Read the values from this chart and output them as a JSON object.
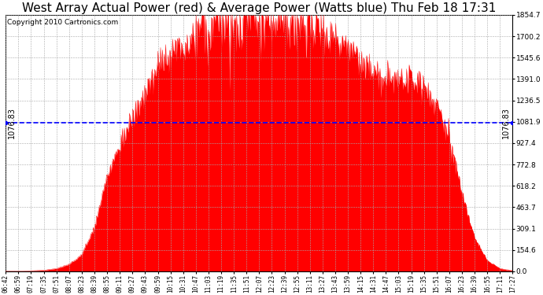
{
  "title": "West Array Actual Power (red) & Average Power (Watts blue) Thu Feb 18 17:31",
  "copyright": "Copyright 2010 Cartronics.com",
  "average_power": 1076.83,
  "ymax": 1854.7,
  "ymin": 0.0,
  "yticks": [
    0.0,
    154.6,
    309.1,
    463.7,
    618.2,
    772.8,
    927.4,
    1081.9,
    1236.5,
    1391.0,
    1545.6,
    1700.2,
    1854.7
  ],
  "fill_color": "#ff0000",
  "line_color": "#0000ff",
  "bg_color": "#ffffff",
  "grid_color": "#aaaaaa",
  "title_fontsize": 11,
  "copyright_fontsize": 6.5,
  "avg_label_fontsize": 7,
  "xtick_labels": [
    "06:42",
    "06:59",
    "07:19",
    "07:35",
    "07:51",
    "08:07",
    "08:23",
    "08:39",
    "08:55",
    "09:11",
    "09:27",
    "09:43",
    "09:59",
    "10:15",
    "10:31",
    "10:47",
    "11:03",
    "11:19",
    "11:35",
    "11:51",
    "12:07",
    "12:23",
    "12:39",
    "12:55",
    "13:11",
    "13:27",
    "13:43",
    "13:59",
    "14:15",
    "14:31",
    "14:47",
    "15:03",
    "15:19",
    "15:35",
    "15:51",
    "16:07",
    "16:23",
    "16:39",
    "16:55",
    "17:11",
    "17:27"
  ],
  "curve_x": [
    0,
    1,
    2,
    3,
    4,
    5,
    6,
    7,
    8,
    9,
    10,
    11,
    12,
    13,
    14,
    15,
    16,
    17,
    18,
    19,
    20,
    21,
    22,
    23,
    24,
    25,
    26,
    27,
    28,
    29,
    30,
    31,
    32,
    33,
    34,
    35,
    36,
    37,
    38,
    39,
    40
  ],
  "curve_y": [
    2,
    2,
    4,
    8,
    20,
    50,
    120,
    320,
    680,
    920,
    1100,
    1280,
    1480,
    1580,
    1650,
    1720,
    1780,
    1800,
    1820,
    1840,
    1830,
    1810,
    1800,
    1780,
    1740,
    1720,
    1680,
    1600,
    1520,
    1430,
    1380,
    1380,
    1370,
    1350,
    1200,
    950,
    580,
    240,
    80,
    20,
    5
  ]
}
